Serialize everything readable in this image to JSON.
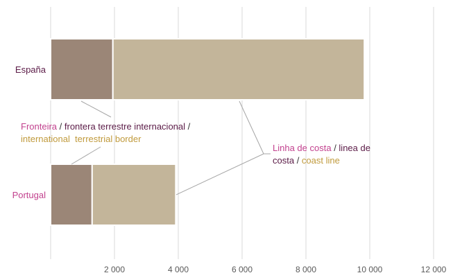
{
  "chart_data": {
    "type": "bar",
    "orientation": "horizontal",
    "stacked": true,
    "categories": [
      "España",
      "Portugal"
    ],
    "category_colors": [
      "#5a1a46",
      "#c2418e"
    ],
    "series": [
      {
        "values": [
          1950,
          1300
        ],
        "color": "#9b8677"
      },
      {
        "values": [
          7880,
          2620
        ],
        "color": "#c3b59a"
      }
    ],
    "xlim": [
      0,
      12000
    ],
    "xticks": [
      2000,
      4000,
      6000,
      8000,
      10000,
      12000
    ],
    "xtick_labels": [
      "2 000",
      "4 000",
      "6 000",
      "8 000",
      "10 000",
      "12 000"
    ],
    "grid": true,
    "annotations": {
      "border": {
        "segments": [
          {
            "text": "Fronteira",
            "color": "#c2418e"
          },
          {
            "text": " / ",
            "color": "#333333"
          },
          {
            "text": "frontera terrestre internacional",
            "color": "#5a1a46"
          },
          {
            "text": " /",
            "color": "#333333"
          }
        ],
        "line2": {
          "text": "international  terrestrial border",
          "color": "#c09a3c"
        }
      },
      "coast": {
        "line1": [
          {
            "text": "Linha de costa",
            "color": "#c2418e"
          },
          {
            "text": " / ",
            "color": "#333333"
          },
          {
            "text": "linea de",
            "color": "#5a1a46"
          }
        ],
        "line2": [
          {
            "text": "costa",
            "color": "#5a1a46"
          },
          {
            "text": " / ",
            "color": "#333333"
          },
          {
            "text": "coast line",
            "color": "#c09a3c"
          }
        ]
      }
    }
  }
}
